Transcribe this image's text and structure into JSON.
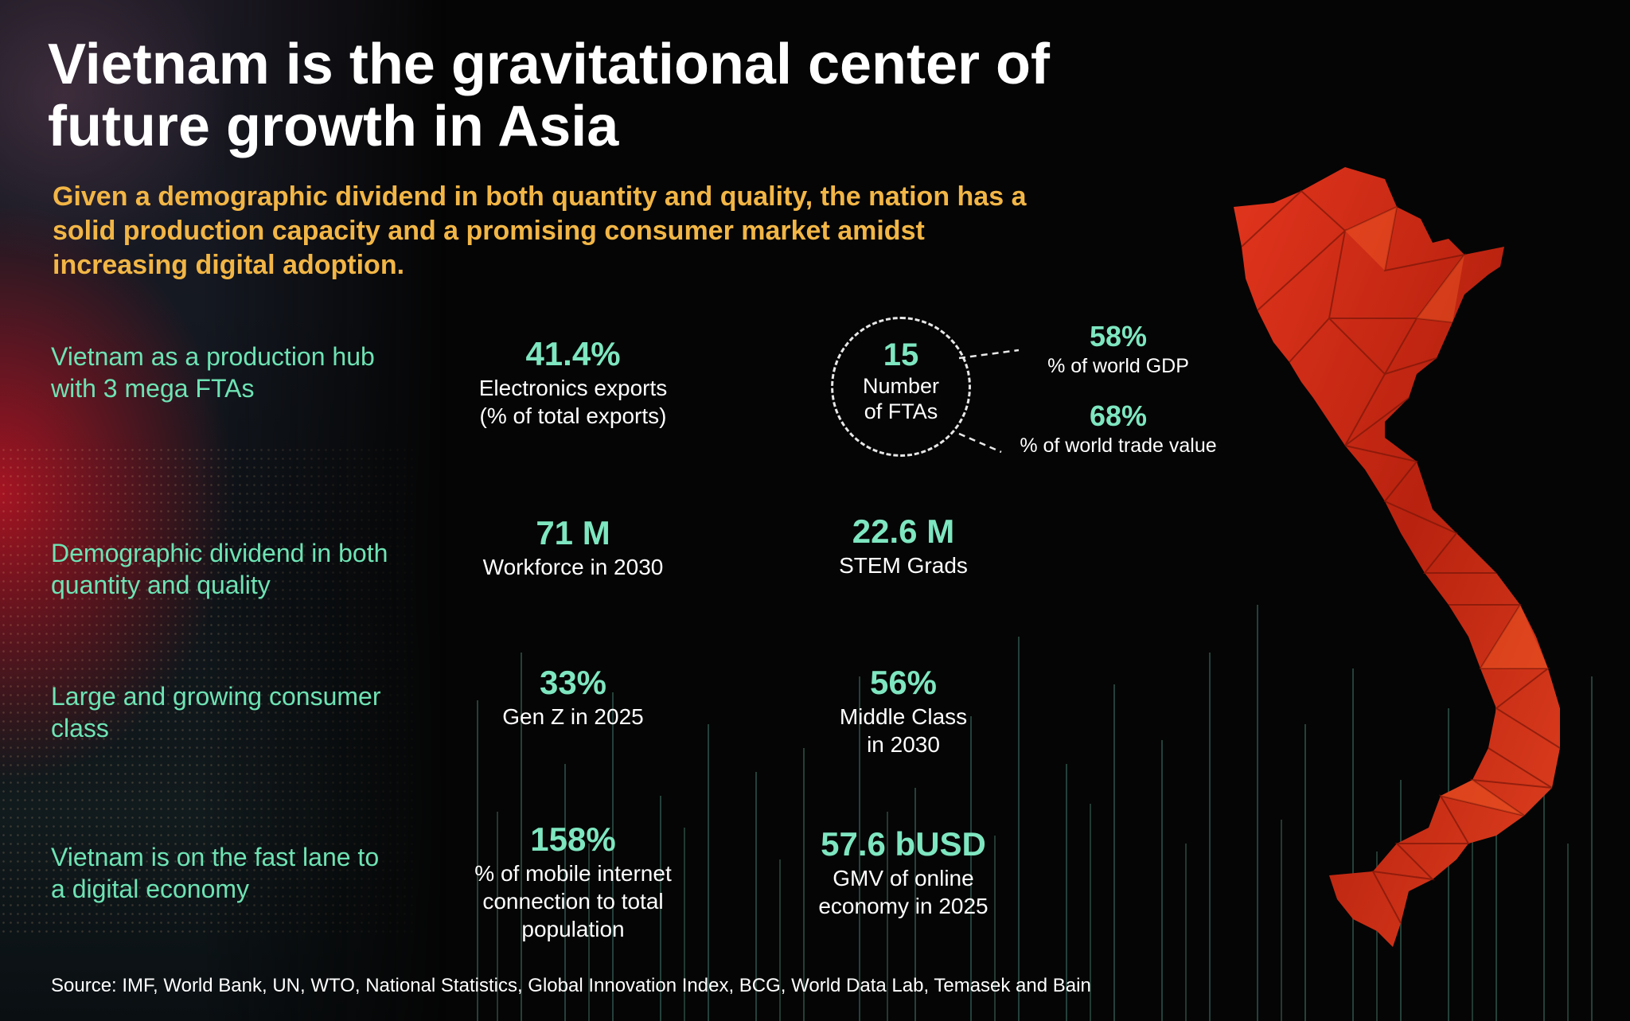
{
  "title": "Vietnam is the gravitational center of future growth in Asia",
  "subtitle": "Given a demographic dividend in both quantity and quality, the nation has a solid production capacity and a promising consumer market amidst increasing digital adoption.",
  "rows": [
    {
      "label": "Vietnam as a production hub with 3 mega FTAs",
      "stat1": {
        "value": "41.4%",
        "desc": "Electronics exports\n(% of total exports)"
      },
      "fta": {
        "value": "15",
        "desc": "Number\nof FTAs"
      },
      "fta_details": [
        {
          "value": "58%",
          "desc": "% of world GDP"
        },
        {
          "value": "68%",
          "desc": "% of world trade value"
        }
      ]
    },
    {
      "label": "Demographic dividend in both quantity and quality",
      "stat1": {
        "value": "71 M",
        "desc": "Workforce in 2030"
      },
      "stat2": {
        "value": "22.6 M",
        "desc": "STEM Grads"
      }
    },
    {
      "label": "Large and growing consumer class",
      "stat1": {
        "value": "33%",
        "desc": "Gen Z in 2025"
      },
      "stat2": {
        "value": "56%",
        "desc": "Middle Class\nin 2030"
      }
    },
    {
      "label": "Vietnam is on the fast lane to a digital economy",
      "stat1": {
        "value": "158%",
        "desc": "% of mobile internet\nconnection to total\npopulation"
      },
      "stat2": {
        "value": "57.6 bUSD",
        "desc": "GMV of online\neconomy in 2025"
      }
    }
  ],
  "source": "Source: IMF, World Bank, UN, WTO, National Statistics, Global Innovation Index, BCG,  World Data Lab, Temasek and Bain",
  "colors": {
    "title": "#ffffff",
    "subtitle": "#f2b646",
    "accent": "#7ee6c0",
    "label": "#6ee3b4",
    "map": "#d1301a"
  }
}
